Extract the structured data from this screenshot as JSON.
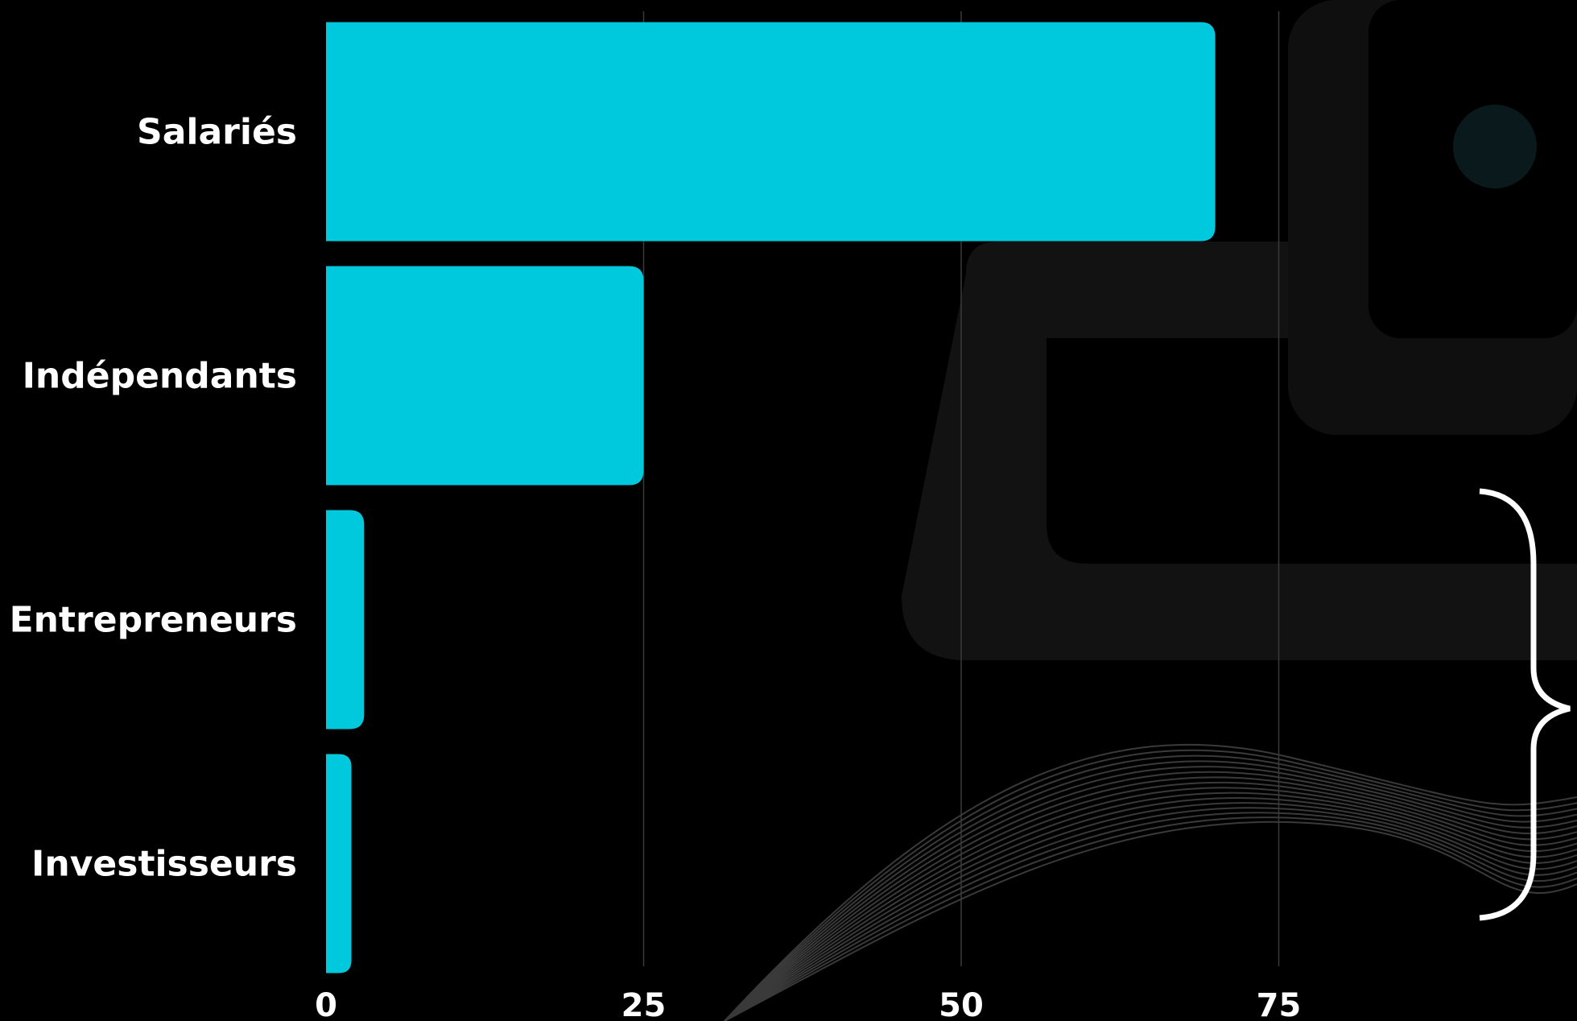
{
  "chart_data": {
    "type": "bar",
    "orientation": "horizontal",
    "categories": [
      "Salariés",
      "Indépendants",
      "Entrepreneurs",
      "Investisseurs"
    ],
    "values": [
      70,
      25,
      3,
      2
    ],
    "xticks": [
      "0",
      "25",
      "50",
      "75"
    ],
    "xlim": [
      0,
      100
    ],
    "grid": true,
    "bar_color": "#00C9DD"
  }
}
